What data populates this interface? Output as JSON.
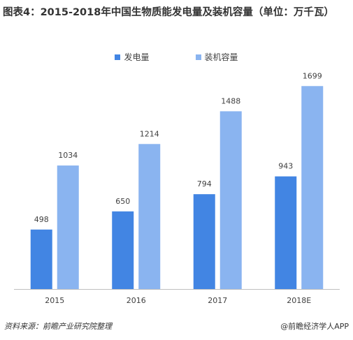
{
  "chart_data": {
    "type": "bar",
    "title": "图表4：2015-2018年中国生物质能发电量及装机容量（单位：万千瓦）",
    "categories": [
      "2015",
      "2016",
      "2017",
      "2018E"
    ],
    "series": [
      {
        "name": "发电量",
        "values": [
          498,
          650,
          794,
          943
        ],
        "color": "#4285e3"
      },
      {
        "name": "装机容量",
        "values": [
          1034,
          1214,
          1488,
          1699
        ],
        "color": "#8ab4f0"
      }
    ],
    "xlabel": "",
    "ylabel": "",
    "ylim": [
      0,
      1800
    ],
    "grid": false,
    "legend": "top-center",
    "data_labels": true
  },
  "footer": {
    "source": "资料来源：前瞻产业研究院整理",
    "brand": "@前瞻经济学人APP"
  },
  "colors": {
    "axis": "#bfbfbf",
    "label": "#404040"
  }
}
